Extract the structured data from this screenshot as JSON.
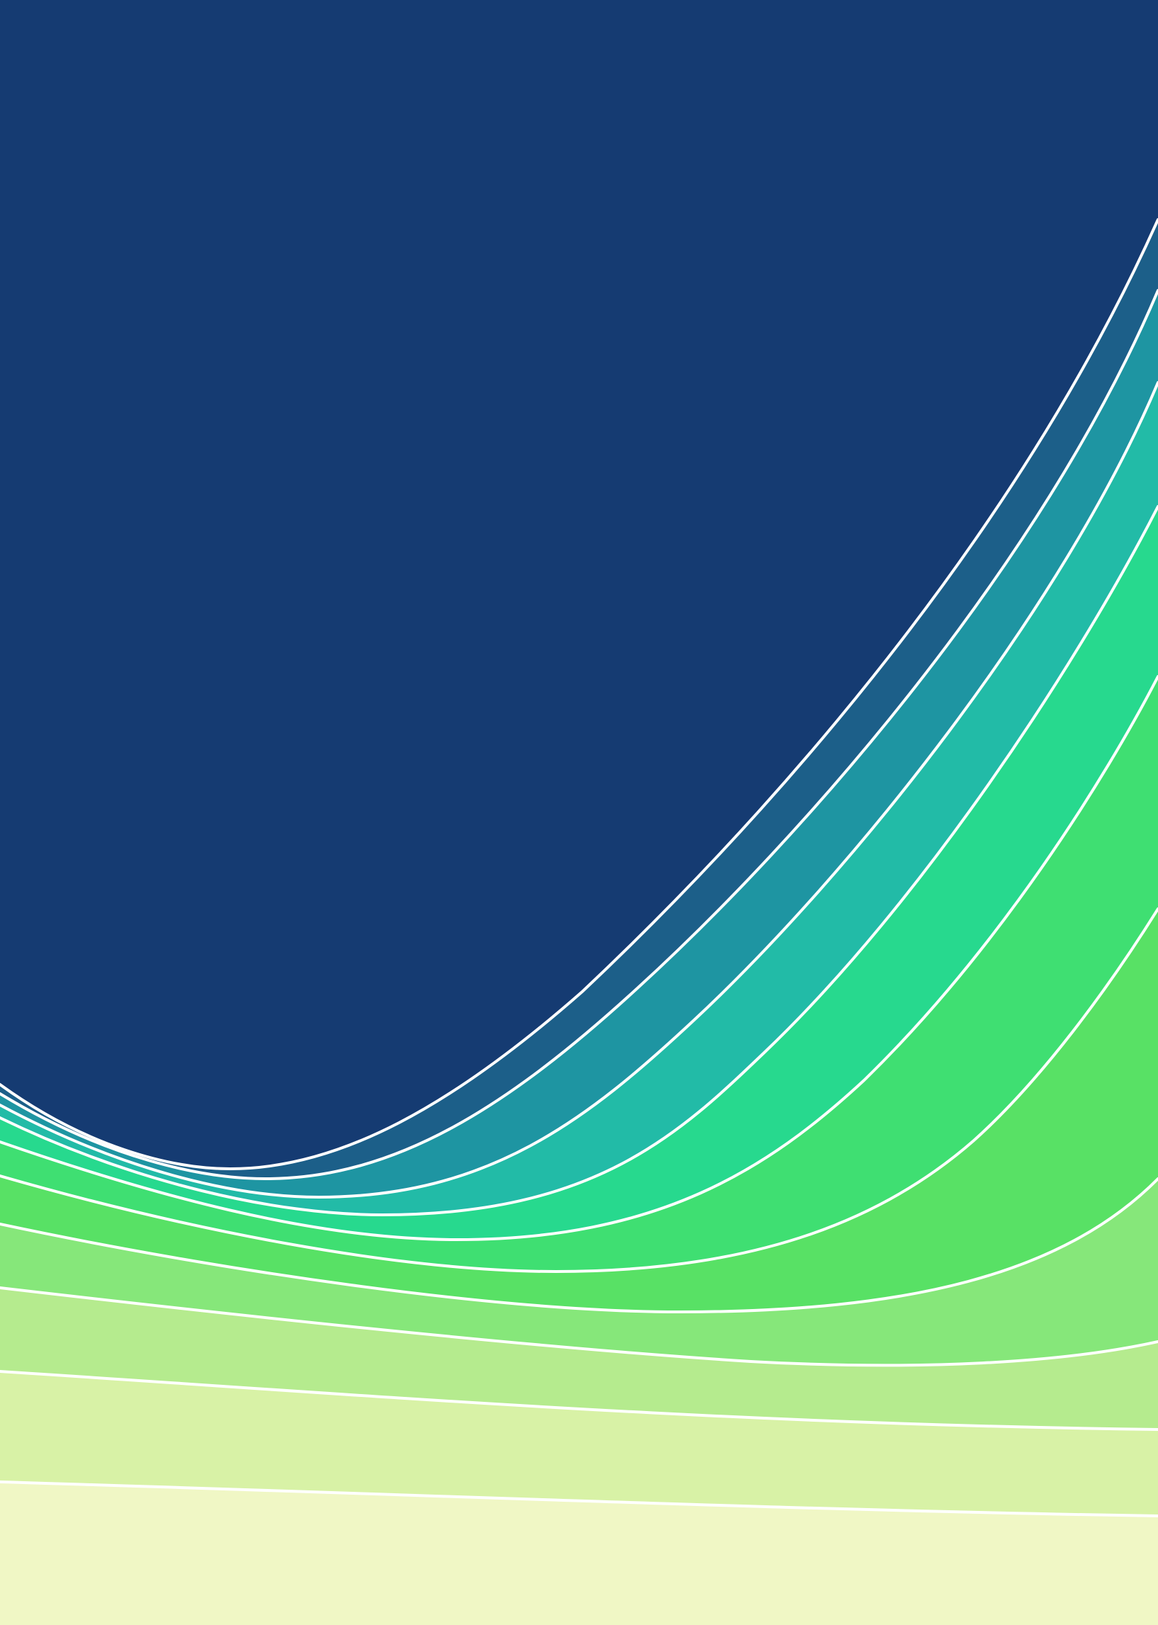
{
  "artwork": {
    "background_color": "#153b72",
    "band_colors": [
      "#1c5f89",
      "#1e95a2",
      "#22bba7",
      "#27d98e",
      "#3fdf72",
      "#58e165",
      "#86e77a",
      "#b5eb8e",
      "#d8f2a6",
      "#f0f7c5"
    ],
    "line_color": "#ffffff"
  }
}
